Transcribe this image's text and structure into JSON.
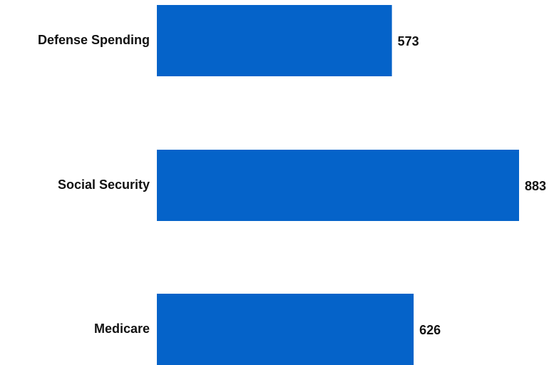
{
  "chart_data": {
    "type": "bar",
    "orientation": "horizontal",
    "categories": [
      "Defense Spending",
      "Social Security",
      "Medicare"
    ],
    "values": [
      573,
      883,
      626
    ],
    "title": "",
    "xlabel": "",
    "ylabel": "",
    "grid": false,
    "legend": "none",
    "bar_color": "#0563C9"
  }
}
